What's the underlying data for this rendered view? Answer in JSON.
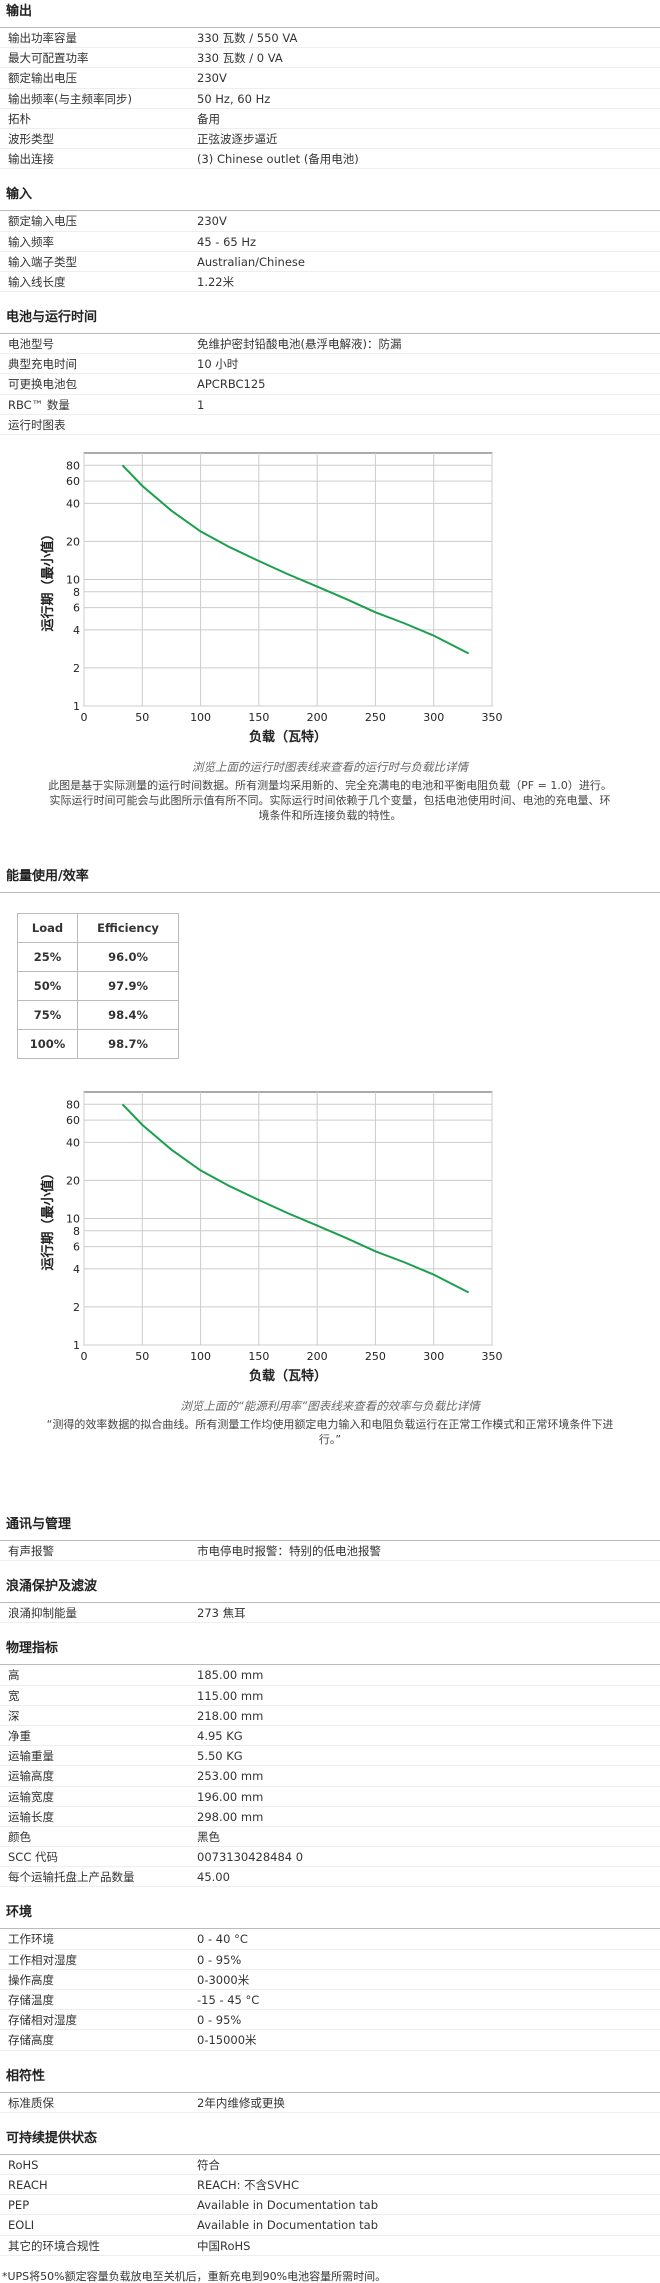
{
  "sections": [
    {
      "title": "输出",
      "rows": [
        [
          "输出功率容量",
          "330 瓦数 / 550 VA"
        ],
        [
          "最大可配置功率",
          "330 瓦数 / 0 VA"
        ],
        [
          "额定输出电压",
          "230V"
        ],
        [
          "输出频率(与主频率同步)",
          "50 Hz, 60 Hz"
        ],
        [
          "拓朴",
          "备用"
        ],
        [
          "波形类型",
          "正弦波逐步逼近"
        ],
        [
          "输出连接",
          "(3) Chinese outlet (备用电池)"
        ]
      ]
    },
    {
      "title": "输入",
      "rows": [
        [
          "额定输入电压",
          "230V"
        ],
        [
          "输入频率",
          "45 - 65 Hz"
        ],
        [
          "输入端子类型",
          "Australian/Chinese"
        ],
        [
          "输入线长度",
          "1.22米"
        ]
      ]
    },
    {
      "title": "电池与运行时间",
      "rows": [
        [
          "电池型号",
          "免维护密封铅酸电池(悬浮电解液)：防漏"
        ],
        [
          "典型充电时间",
          "10 小时"
        ],
        [
          "可更换电池包",
          "APCRBC125"
        ],
        [
          "RBC™ 数量",
          "1"
        ],
        [
          "运行时图表"
        ]
      ]
    },
    {
      "title": "能量使用/效率",
      "rows": []
    },
    {
      "title": "通讯与管理",
      "rows": [
        [
          "有声报警",
          "市电停电时报警：特别的低电池报警"
        ]
      ]
    },
    {
      "title": "浪涌保护及滤波",
      "rows": [
        [
          "浪涌抑制能量",
          "273 焦耳"
        ]
      ]
    },
    {
      "title": "物理指标",
      "rows": [
        [
          "高",
          "185.00 mm"
        ],
        [
          "宽",
          "115.00 mm"
        ],
        [
          "深",
          "218.00 mm"
        ],
        [
          "净重",
          "4.95 KG"
        ],
        [
          "运输重量",
          "5.50 KG"
        ],
        [
          "运输高度",
          "253.00 mm"
        ],
        [
          "运输宽度",
          "196.00 mm"
        ],
        [
          "运输长度",
          "298.00 mm"
        ],
        [
          "颜色",
          "黑色"
        ],
        [
          "SCC 代码",
          "0073130428484 0"
        ],
        [
          "每个运输托盘上产品数量",
          "45.00"
        ]
      ]
    },
    {
      "title": "环境",
      "rows": [
        [
          "工作环境",
          "0 - 40 °C"
        ],
        [
          "工作相对湿度",
          "0 - 95%"
        ],
        [
          "操作高度",
          "0-3000米"
        ],
        [
          "存储温度",
          "-15 - 45 °C"
        ],
        [
          "存储相对湿度",
          "0 - 95%"
        ],
        [
          "存储高度",
          "0-15000米"
        ]
      ]
    },
    {
      "title": "相符性",
      "rows": [
        [
          "标准质保",
          "2年内维修或更换"
        ]
      ]
    },
    {
      "title": "可持续提供状态",
      "rows": [
        [
          "RoHS",
          "符合"
        ],
        [
          "REACH",
          "REACH: 不含SVHC"
        ],
        [
          "PEP",
          "Available in Documentation tab"
        ],
        [
          "EOLI",
          "Available in Documentation tab"
        ],
        [
          "其它的环境合规性",
          "中国RoHS"
        ]
      ]
    }
  ],
  "runtime_note": {
    "caption": "浏览上面的运行时图表线来查看的运行时与负载比详情",
    "text": "此图是基于实际测量的运行时间数据。所有测量均采用新的、完全充满电的电池和平衡电阻负载（PF = 1.0）进行。实际运行时间可能会与此图所示值有所不同。实际运行时间依赖于几个变量，包括电池使用时间、电池的充电量、环境条件和所连接负载的特性。"
  },
  "efficiency": {
    "table": {
      "header": [
        "Load",
        "Efficiency"
      ],
      "rows": [
        [
          "25%",
          "96.0%"
        ],
        [
          "50%",
          "97.9%"
        ],
        [
          "75%",
          "98.4%"
        ],
        [
          "100%",
          "98.7%"
        ]
      ]
    },
    "caption": "浏览上面的“能源利用率”图表线来查看的效率与负载比详情",
    "text": "“测得的效率数据的拟合曲线。所有测量工作均使用额定电力输入和电阻负载运行在正常工作模式和正常环境条件下进行。”"
  },
  "chart_data": [
    {
      "type": "line",
      "xlabel": "负载（瓦特）",
      "ylabel": "运行期（最小值）",
      "color": "#1aa04c",
      "log_y": true,
      "grid": true,
      "x": [
        33,
        50,
        75,
        100,
        125,
        150,
        175,
        200,
        225,
        250,
        275,
        300,
        330
      ],
      "values": [
        80,
        55,
        35,
        24,
        18,
        14,
        11,
        8.8,
        7,
        5.5,
        4.5,
        3.6,
        2.6
      ],
      "xlim": [
        0,
        350
      ],
      "ylim": [
        1,
        100
      ],
      "xticks": [
        0,
        50,
        100,
        150,
        200,
        250,
        300,
        350
      ],
      "yticks": [
        1,
        2,
        4,
        6,
        8,
        10,
        20,
        40,
        60,
        80
      ]
    },
    {
      "type": "line",
      "xlabel": "负载（瓦特）",
      "ylabel": "运行期（最小值）",
      "color": "#1aa04c",
      "log_y": true,
      "grid": true,
      "x": [
        33,
        50,
        75,
        100,
        125,
        150,
        175,
        200,
        225,
        250,
        275,
        300,
        330
      ],
      "values": [
        80,
        55,
        35,
        24,
        18,
        14,
        11,
        8.8,
        7,
        5.5,
        4.5,
        3.6,
        2.6
      ],
      "xlim": [
        0,
        350
      ],
      "ylim": [
        1,
        100
      ],
      "xticks": [
        0,
        50,
        100,
        150,
        200,
        250,
        300,
        350
      ],
      "yticks": [
        1,
        2,
        4,
        6,
        8,
        10,
        20,
        40,
        60,
        80
      ]
    }
  ],
  "footnote": "*UPS将50%额定容量负载放电至关机后，重新充电到90%电池容量所需时间。"
}
